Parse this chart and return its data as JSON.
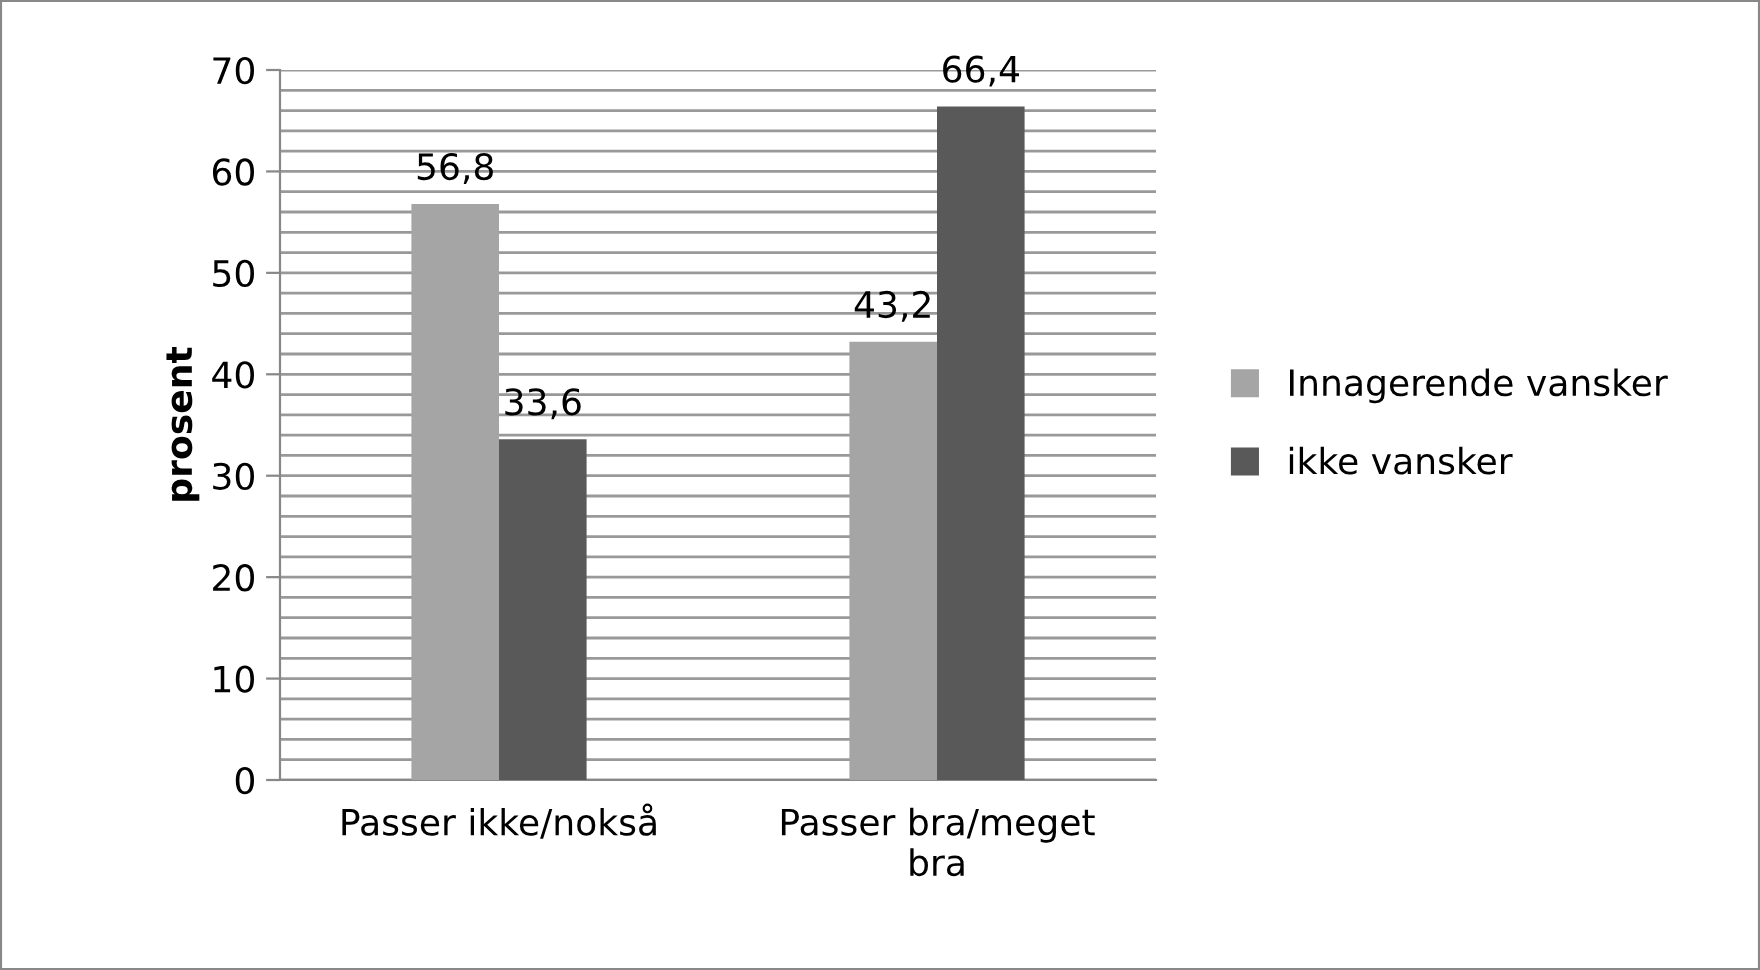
{
  "chart_data": {
    "type": "bar",
    "ylabel": "prosent",
    "categories": [
      "Passer ikke/nokså",
      "Passer bra/meget\nbra"
    ],
    "series": [
      {
        "name": "Innagerende vansker",
        "color": "#a5a5a5",
        "values": [
          56.8,
          43.2
        ],
        "value_labels": [
          "56,8",
          "43,2"
        ]
      },
      {
        "name": "ikke vansker",
        "color": "#595959",
        "values": [
          33.6,
          66.4
        ],
        "value_labels": [
          "33,6",
          "66,4"
        ]
      }
    ],
    "ylim": [
      0,
      70
    ],
    "yticks": [
      0,
      {
        "value": 2,
        "label": null
      },
      {
        "value": 4,
        "label": null
      },
      {
        "value": 6,
        "label": null
      },
      {
        "value": 8,
        "label": null
      },
      10,
      {
        "value": 12,
        "label": null
      },
      {
        "value": 14,
        "label": null
      },
      {
        "value": 16,
        "label": null
      },
      {
        "value": 18,
        "label": null
      },
      20,
      {
        "value": 22,
        "label": null
      },
      {
        "value": 24,
        "label": null
      },
      {
        "value": 26,
        "label": null
      },
      {
        "value": 28,
        "label": null
      },
      30,
      {
        "value": 32,
        "label": null
      },
      {
        "value": 34,
        "label": null
      },
      {
        "value": 36,
        "label": null
      },
      {
        "value": 38,
        "label": null
      },
      40,
      {
        "value": 42,
        "label": null
      },
      {
        "value": 44,
        "label": null
      },
      {
        "value": 46,
        "label": null
      },
      {
        "value": 48,
        "label": null
      },
      50,
      {
        "value": 52,
        "label": null
      },
      {
        "value": 54,
        "label": null
      },
      {
        "value": 56,
        "label": null
      },
      {
        "value": 58,
        "label": null
      },
      60,
      {
        "value": 62,
        "label": null
      },
      {
        "value": 64,
        "label": null
      },
      {
        "value": 66,
        "label": null
      },
      {
        "value": 68,
        "label": null
      },
      70
    ],
    "grid": "y",
    "legend": "right"
  }
}
